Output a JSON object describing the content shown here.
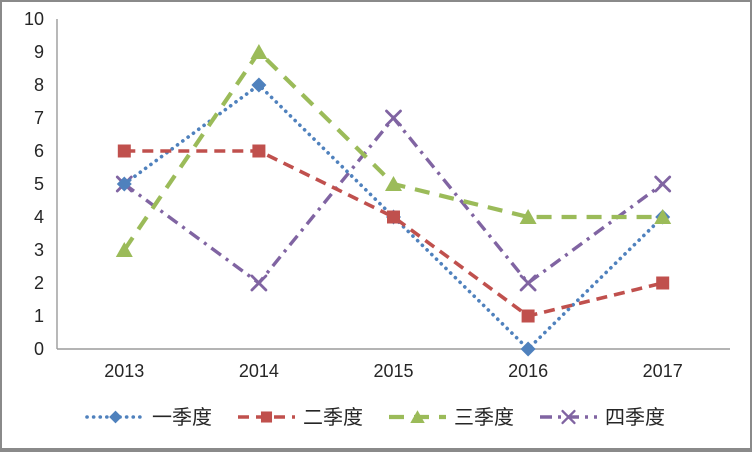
{
  "chart_data": {
    "type": "line",
    "title": "",
    "xlabel": "",
    "ylabel": "",
    "categories": [
      "2013",
      "2014",
      "2015",
      "2016",
      "2017"
    ],
    "series": [
      {
        "name": "一季度",
        "values": [
          5,
          8,
          4,
          0,
          4
        ],
        "color": "#4F81BD",
        "marker": "diamond",
        "dash": "dot"
      },
      {
        "name": "二季度",
        "values": [
          6,
          6,
          4,
          1,
          2
        ],
        "color": "#C0504D",
        "marker": "square",
        "dash": "dash"
      },
      {
        "name": "三季度",
        "values": [
          3,
          9,
          5,
          4,
          4
        ],
        "color": "#9BBB59",
        "marker": "triangle",
        "dash": "long-dash"
      },
      {
        "name": "四季度",
        "values": [
          5,
          2,
          7,
          2,
          5
        ],
        "color": "#8064A2",
        "marker": "x",
        "dash": "dash-dot"
      }
    ],
    "ylim": [
      0,
      10
    ],
    "ytick_step": 1,
    "ytick_labels": [
      "0",
      "1",
      "2",
      "3",
      "4",
      "5",
      "6",
      "7",
      "8",
      "9",
      "10"
    ],
    "grid": false,
    "legend_position": "bottom",
    "legend_entries": [
      "一季度",
      "二季度",
      "三季度",
      "四季度"
    ],
    "axis_color": "#9B9B9B",
    "text_color": "#262626",
    "background_color": "#FFFFFF",
    "frame_border_color": "#8A8A8A",
    "draw_order": [
      3,
      0,
      1,
      2
    ]
  }
}
